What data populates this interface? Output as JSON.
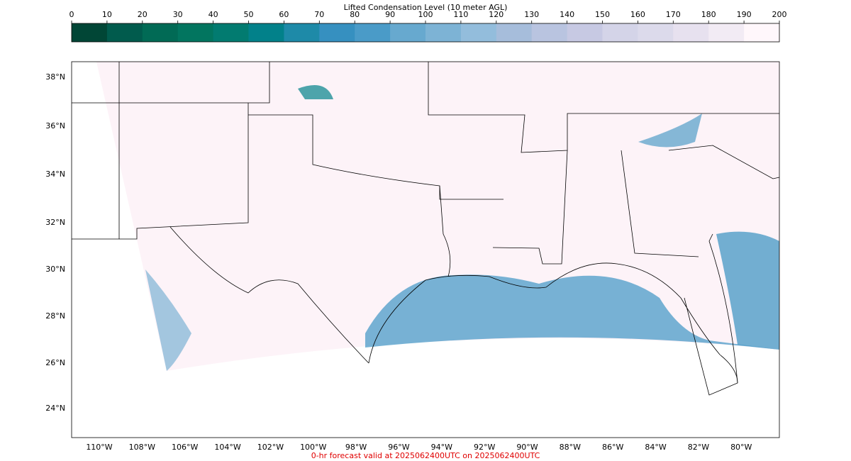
{
  "colorbar": {
    "title": "Lifted Condensation Level (10 meter AGL)",
    "ticks": [
      0,
      10,
      20,
      30,
      40,
      50,
      60,
      70,
      80,
      90,
      100,
      110,
      120,
      130,
      140,
      150,
      160,
      170,
      180,
      190,
      200
    ],
    "colors": [
      "#014636",
      "#015b4d",
      "#016a55",
      "#02755f",
      "#027b70",
      "#02818a",
      "#1e8aa8",
      "#3690c0",
      "#4a9bc8",
      "#67a9cf",
      "#7db3d5",
      "#93bddc",
      "#a6bddb",
      "#b9c4e0",
      "#c7c9e3",
      "#d4d4e8",
      "#dcdaeb",
      "#e7e1ef",
      "#f2ebf4",
      "#fff7fb"
    ]
  },
  "map": {
    "lat_labels": [
      "38°N",
      "36°N",
      "34°N",
      "32°N",
      "30°N",
      "28°N",
      "26°N",
      "24°N"
    ],
    "lon_labels": [
      "110°W",
      "108°W",
      "106°W",
      "104°W",
      "102°W",
      "100°W",
      "98°W",
      "96°W",
      "94°W",
      "92°W",
      "90°W",
      "88°W",
      "86°W",
      "84°W",
      "82°W",
      "80°W"
    ]
  },
  "footer": "0-hr forecast valid at 2025062400UTC on 2025062400UTC"
}
